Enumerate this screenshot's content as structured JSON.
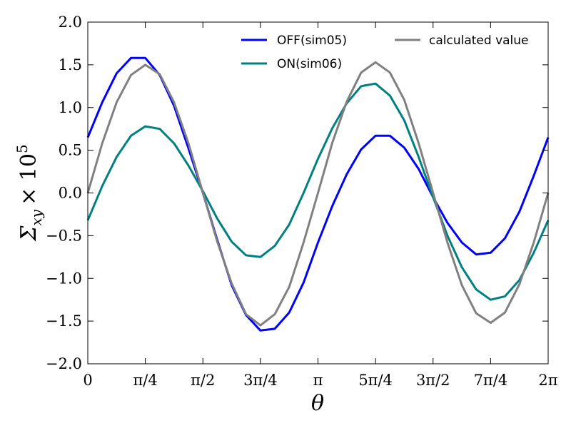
{
  "chart_data": {
    "type": "line",
    "title": "",
    "xlabel": "θ",
    "ylabel_main": "Σ",
    "ylabel_sub": "xy",
    "ylabel_times": "× 10",
    "ylabel_exp": "5",
    "xlim": [
      0,
      6.2832
    ],
    "ylim": [
      -2.0,
      2.0
    ],
    "grid": false,
    "legend_position": "top-right",
    "x_ticks": [
      {
        "value": 0,
        "label": "0"
      },
      {
        "value": 0.7854,
        "label": "π/4"
      },
      {
        "value": 1.5708,
        "label": "π/2"
      },
      {
        "value": 2.3562,
        "label": "3π/4"
      },
      {
        "value": 3.1416,
        "label": "π"
      },
      {
        "value": 3.927,
        "label": "5π/4"
      },
      {
        "value": 4.7124,
        "label": "3π/2"
      },
      {
        "value": 5.4978,
        "label": "7π/4"
      },
      {
        "value": 6.2832,
        "label": "2π"
      }
    ],
    "y_ticks": [
      {
        "value": -2.0,
        "label": "−2.0"
      },
      {
        "value": -1.5,
        "label": "−1.5"
      },
      {
        "value": -1.0,
        "label": "−1.0"
      },
      {
        "value": -0.5,
        "label": "−0.5"
      },
      {
        "value": 0.0,
        "label": "0.0"
      },
      {
        "value": 0.5,
        "label": "0.5"
      },
      {
        "value": 1.0,
        "label": "1.0"
      },
      {
        "value": 1.5,
        "label": "1.5"
      },
      {
        "value": 2.0,
        "label": "2.0"
      }
    ],
    "x": [
      0,
      0.1963,
      0.3927,
      0.589,
      0.7854,
      0.9817,
      1.1781,
      1.3744,
      1.5708,
      1.7671,
      1.9635,
      2.1598,
      2.3562,
      2.5525,
      2.7489,
      2.9452,
      3.1416,
      3.3379,
      3.5343,
      3.7306,
      3.927,
      4.1233,
      4.3197,
      4.516,
      4.7124,
      4.9087,
      5.1051,
      5.3014,
      5.4978,
      5.6941,
      5.8905,
      6.0868,
      6.2832
    ],
    "series": [
      {
        "name": "OFF(sim05)",
        "color": "#0000ff",
        "values": [
          0.65,
          1.06,
          1.4,
          1.58,
          1.58,
          1.38,
          1.02,
          0.52,
          0.0,
          -0.55,
          -1.08,
          -1.43,
          -1.61,
          -1.59,
          -1.4,
          -1.05,
          -0.58,
          -0.15,
          0.22,
          0.51,
          0.67,
          0.67,
          0.53,
          0.28,
          -0.05,
          -0.35,
          -0.58,
          -0.72,
          -0.7,
          -0.53,
          -0.22,
          0.2,
          0.65
        ]
      },
      {
        "name": "ON(sim06)",
        "color": "#008080",
        "values": [
          -0.32,
          0.08,
          0.42,
          0.67,
          0.78,
          0.75,
          0.58,
          0.32,
          0.02,
          -0.3,
          -0.57,
          -0.73,
          -0.75,
          -0.62,
          -0.37,
          0.0,
          0.4,
          0.76,
          1.05,
          1.25,
          1.28,
          1.14,
          0.85,
          0.42,
          -0.05,
          -0.5,
          -0.87,
          -1.13,
          -1.25,
          -1.21,
          -1.02,
          -0.7,
          -0.32
        ]
      },
      {
        "name": "calculated value",
        "color": "#808080",
        "values": [
          0.0,
          0.58,
          1.06,
          1.38,
          1.5,
          1.39,
          1.06,
          0.58,
          0.0,
          -0.57,
          -1.06,
          -1.42,
          -1.55,
          -1.42,
          -1.1,
          -0.58,
          0.0,
          0.59,
          1.07,
          1.41,
          1.53,
          1.41,
          1.09,
          0.58,
          0.0,
          -0.58,
          -1.08,
          -1.41,
          -1.52,
          -1.4,
          -1.07,
          -0.58,
          0.0
        ]
      }
    ]
  }
}
